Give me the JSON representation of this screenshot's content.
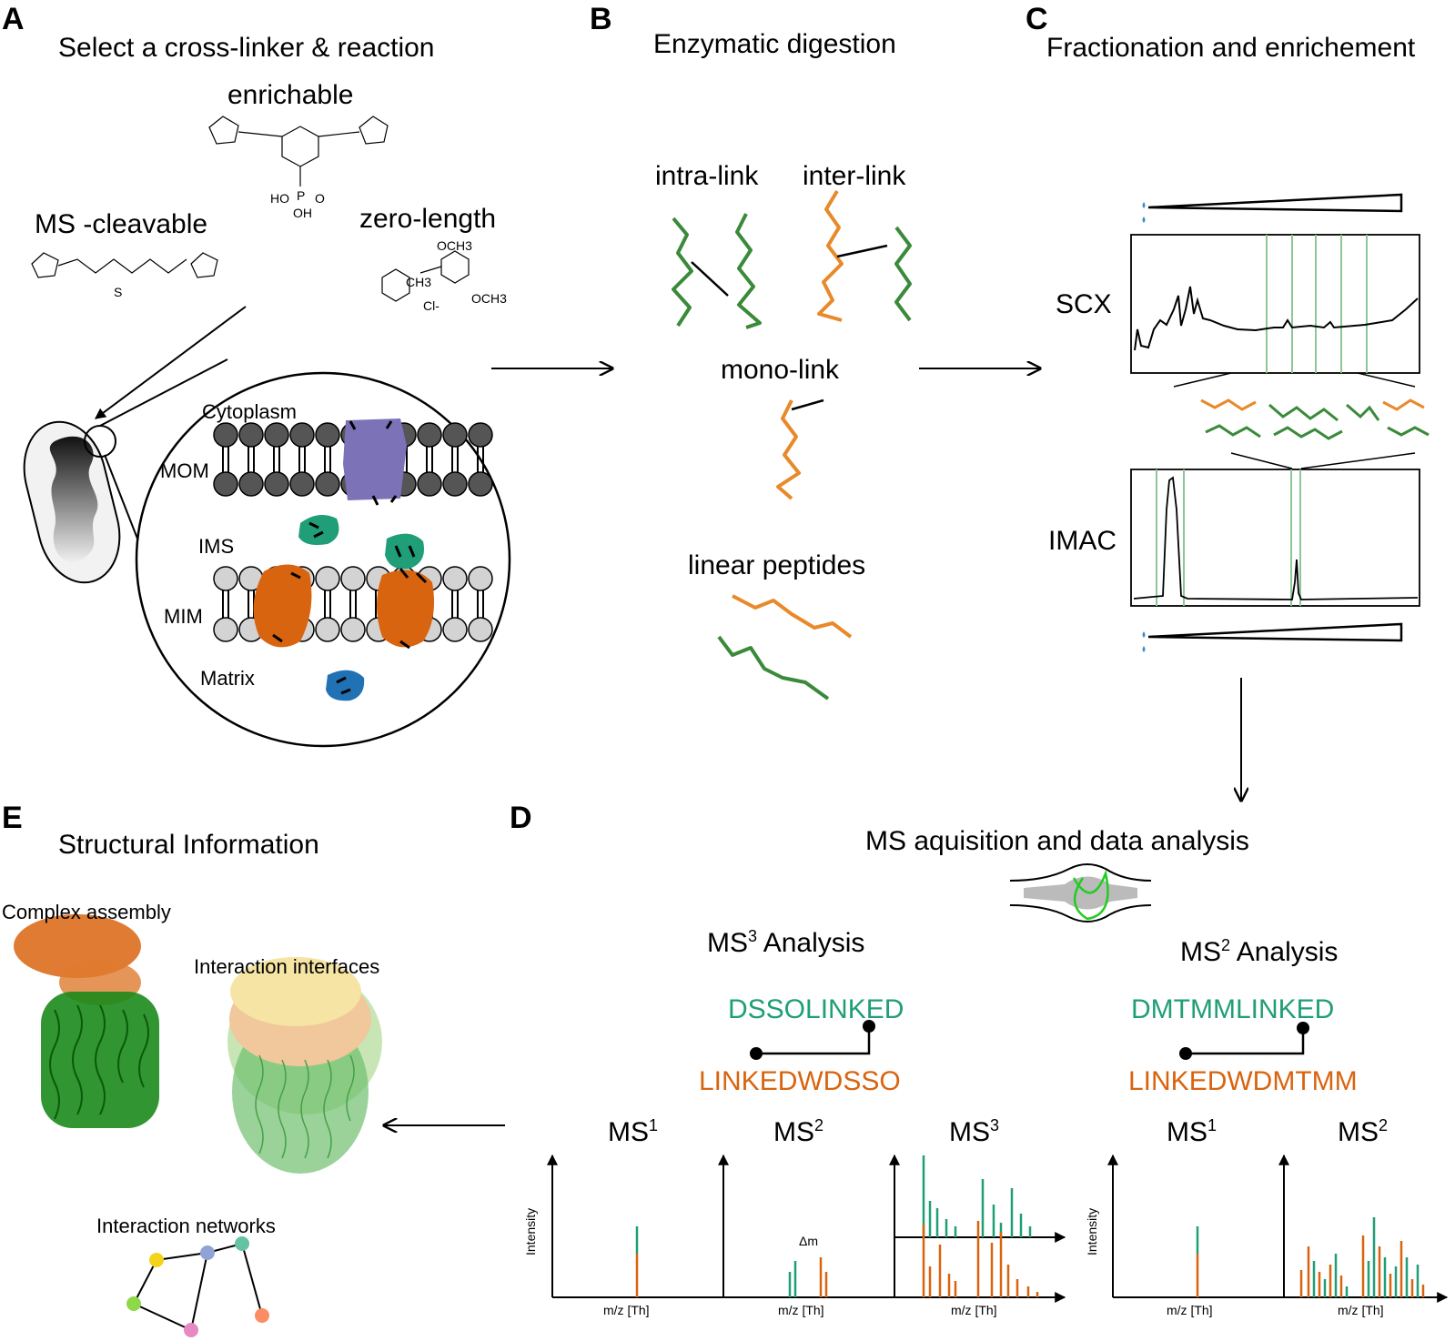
{
  "panels": {
    "A": {
      "letter": "A",
      "title": "Select a cross-linker & reaction",
      "crosslinkers": {
        "enrichable": "enrichable",
        "ms_cleavable": "MS -cleavable",
        "zero_length": "zero-length"
      },
      "compartments": {
        "cytoplasm": "Cytoplasm",
        "mom": "MOM",
        "ims": "IMS",
        "mim": "MIM",
        "matrix": "Matrix"
      },
      "chem_labels": {
        "ho1": "HO",
        "p": "P",
        "o": "O",
        "oh": "OH",
        "och3_top": "OCH3",
        "och3_right": "OCH3",
        "ch3": "CH3",
        "cl": "Cl-",
        "s": "S"
      }
    },
    "B": {
      "letter": "B",
      "title": "Enzymatic digestion",
      "intra": "intra-link",
      "inter": "inter-link",
      "mono": "mono-link",
      "linear": "linear peptides"
    },
    "C": {
      "letter": "C",
      "title": "Fractionation and enrichement",
      "scx": "SCX",
      "imac": "IMAC"
    },
    "D": {
      "letter": "D",
      "title": "MS aquisition and data analysis",
      "ms3_analysis_prefix": "MS",
      "ms3_analysis_sup": "3",
      "ms3_analysis_suffix": " Analysis",
      "ms2_analysis_prefix": "MS",
      "ms2_analysis_sup": "2",
      "ms2_analysis_suffix": " Analysis",
      "dsso_top": "DSSOLINKED",
      "dsso_bottom": "LINKEDWDSSO",
      "dmtmm_top": "DMTMMLINKED",
      "dmtmm_bottom": "LINKEDWDMTMM",
      "ms_prefix": "MS",
      "sup1": "1",
      "sup2": "2",
      "sup3": "3",
      "intensity": "Intensity",
      "mz": "m/z [Th]",
      "delta_m": "Δm"
    },
    "E": {
      "letter": "E",
      "title": "Structural Information",
      "complex": "Complex assembly",
      "interfaces": "Interaction interfaces",
      "networks": "Interaction networks"
    }
  },
  "colors": {
    "green": "#1f9e77",
    "orange": "#d9640f",
    "peptide_green": "#3a8a3a",
    "peptide_orange": "#e8892a",
    "purple": "#7b72b8",
    "teal": "#1f9e77",
    "blue": "#2171b5",
    "lipid_dark": "#555555",
    "lipid_light": "#d3d3d3",
    "fraction_line": "#8cc79a"
  },
  "chart_data": [
    {
      "type": "bar",
      "title": "MS1 (MS3 Analysis)",
      "xlabel": "m/z [Th]",
      "ylabel": "Intensity",
      "series": [
        {
          "values": [
            1.0
          ]
        }
      ]
    },
    {
      "type": "bar",
      "title": "MS2 (MS3 Analysis)",
      "xlabel": "m/z [Th]",
      "series": [
        {
          "values": [
            0.4,
            0.5,
            0.55,
            0.4
          ]
        }
      ]
    },
    {
      "type": "bar",
      "title": "MS2 (MS2 Analysis)",
      "xlabel": "m/z [Th]",
      "series": [
        {
          "values": [
            0.3,
            0.5,
            0.6,
            0.4
          ]
        }
      ]
    }
  ]
}
